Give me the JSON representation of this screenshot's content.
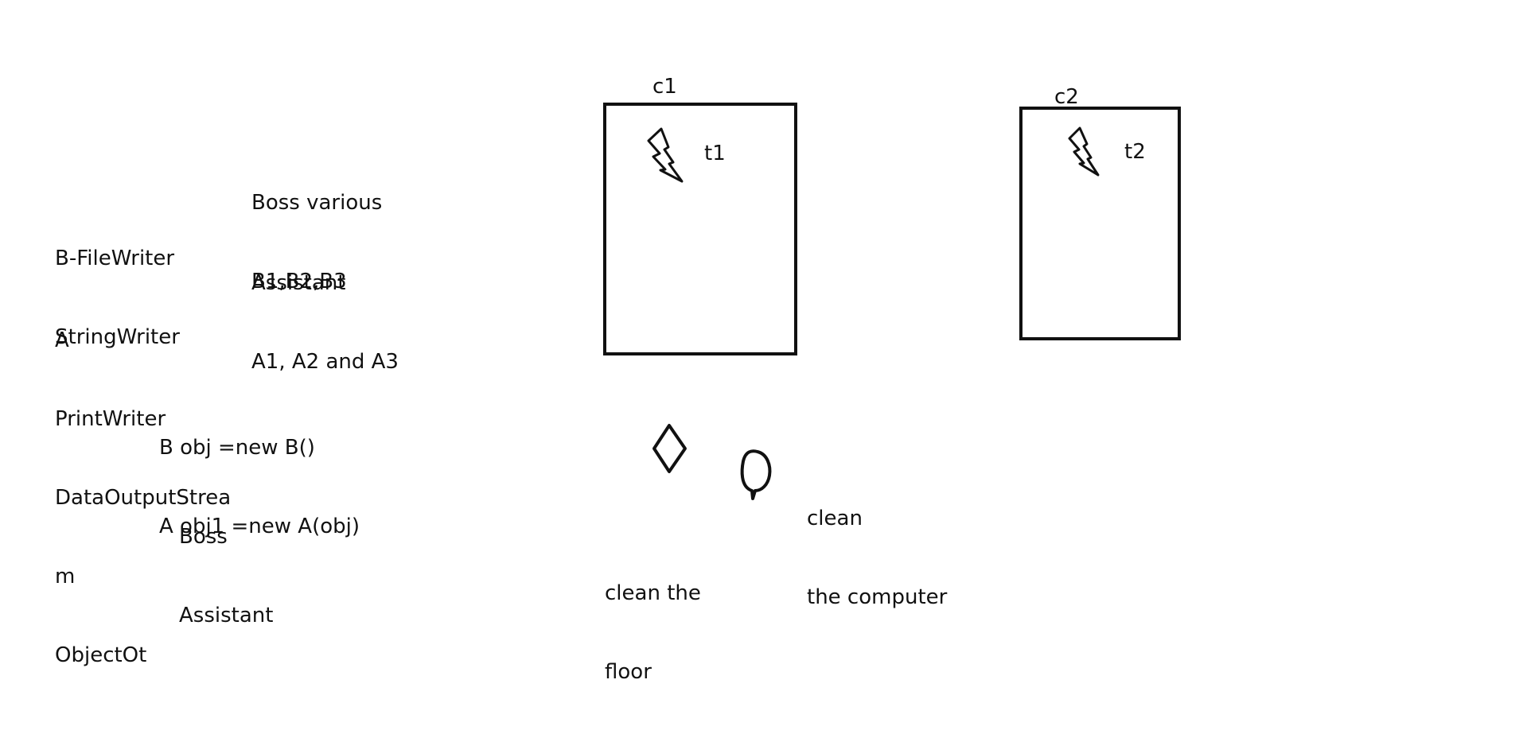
{
  "notes": {
    "boss_various": [
      "Boss various",
      "B1,B2,B3"
    ],
    "assistant": [
      "Assistant",
      "A1, A2 and A3"
    ],
    "b_writers": [
      "B-FileWriter",
      "StringWriter"
    ],
    "a_writers": [
      "A",
      "PrintWriter",
      "DataOutputStrea",
      "m",
      "ObjectOt"
    ],
    "code": [
      "B obj =new B()",
      "A obj1 =new A(obj)"
    ],
    "boss_assistant": [
      "Boss",
      "Assistant"
    ]
  },
  "diagram": {
    "container1_label": "c1",
    "thread1_label": "t1",
    "container2_label": "c2",
    "thread2_label": "t2",
    "task_floor": [
      "clean the",
      "floor"
    ],
    "task_computer": [
      "clean",
      "the computer"
    ]
  },
  "icons": {
    "thread1": "lightning-bolt-icon",
    "thread2": "lightning-bolt-icon",
    "floor_task": "diamond-icon",
    "computer_task": "speech-bubble-icon"
  },
  "colors": {
    "ink": "#111111",
    "background": "#ffffff"
  }
}
